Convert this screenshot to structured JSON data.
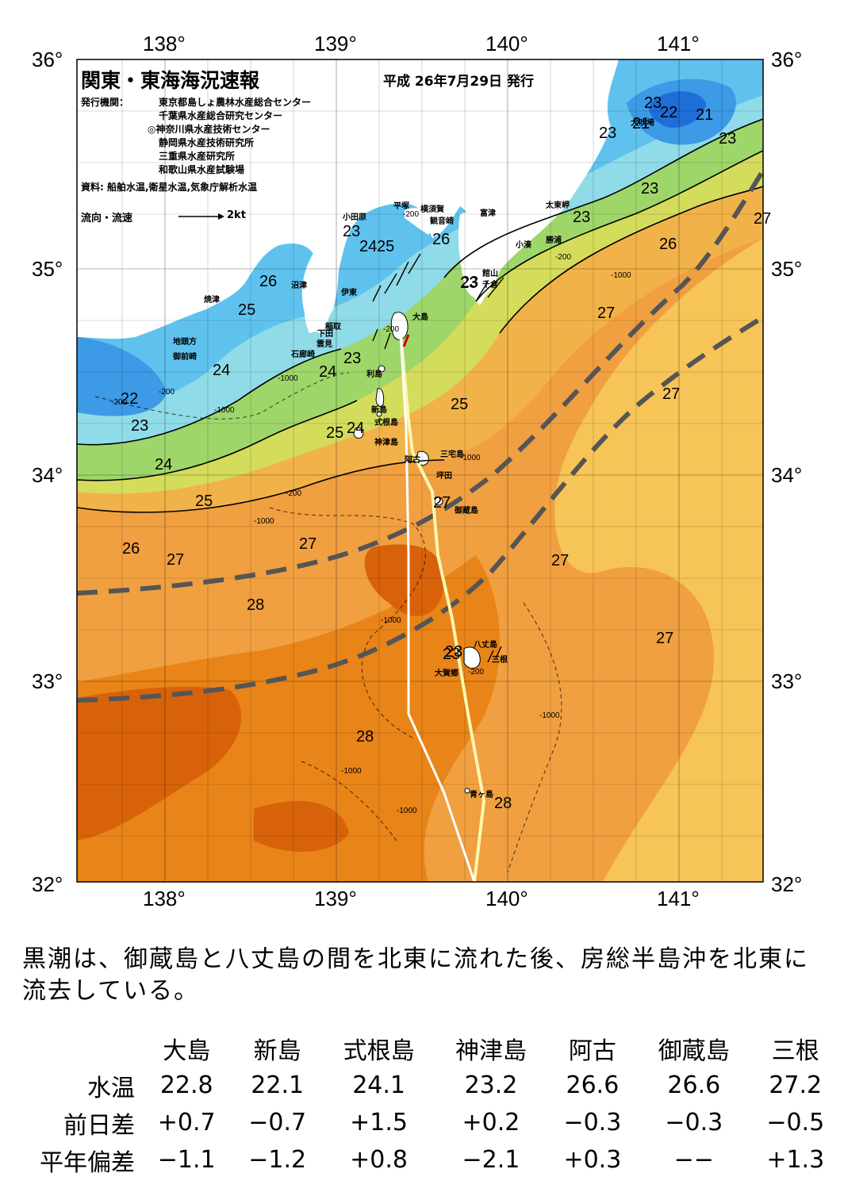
{
  "map": {
    "title": "関東・東海海況速報",
    "date": "平成 26年7月29日 発行",
    "publisher_label": "発行機関：",
    "publishers": [
      "東京都島しょ農林水産総合センター",
      "千葉県水産総合研究センター",
      "◎神奈川県水産技術センター",
      "静岡県水産技術研究所",
      "三重県水産研究所",
      "和歌山県水産試験場"
    ],
    "source": "資料: 船舶水温,衛星水温,気象庁解析水温",
    "legend_label": "流向・流速",
    "legend_scale": "2kt",
    "lon_labels": [
      "138°",
      "139°",
      "140°",
      "141°"
    ],
    "lat_labels": [
      "36°",
      "35°",
      "34°",
      "33°",
      "32°"
    ],
    "colors": {
      "t21": "#1e6ed8",
      "t22": "#3c9ae6",
      "t23": "#5fc2ee",
      "t24": "#8fdbe8",
      "t25": "#7fd07a",
      "t26": "#c9e05c",
      "t27": "#f0a040",
      "t28": "#e88418",
      "t29": "#d8620a",
      "land": "#ffffff",
      "kuroshio": "#555555",
      "track": "#fff6b0"
    },
    "place_labels": [
      {
        "text": "犬吠埼"
      },
      {
        "text": "太東岬"
      },
      {
        "text": "勝浦"
      },
      {
        "text": "小湊"
      },
      {
        "text": "富津"
      },
      {
        "text": "横須賀"
      },
      {
        "text": "観音崎"
      },
      {
        "text": "平塚"
      },
      {
        "text": "小田原"
      },
      {
        "text": "館山"
      },
      {
        "text": "千倉"
      },
      {
        "text": "沼津"
      },
      {
        "text": "焼津"
      },
      {
        "text": "伊東"
      },
      {
        "text": "稲取"
      },
      {
        "text": "下田"
      },
      {
        "text": "雲見"
      },
      {
        "text": "石廊崎"
      },
      {
        "text": "地頭方"
      },
      {
        "text": "御前崎"
      },
      {
        "text": "大島"
      },
      {
        "text": "利島"
      },
      {
        "text": "新島"
      },
      {
        "text": "式根島"
      },
      {
        "text": "神津島"
      },
      {
        "text": "三宅島"
      },
      {
        "text": "坪田"
      },
      {
        "text": "御蔵島"
      },
      {
        "text": "八丈島"
      },
      {
        "text": "大賀郷"
      },
      {
        "text": "青ヶ島"
      },
      {
        "text": "阿古"
      },
      {
        "text": "三根"
      }
    ],
    "temp_labels": [
      {
        "text": "23"
      },
      {
        "text": "22"
      },
      {
        "text": "21"
      },
      {
        "text": "21"
      },
      {
        "text": "23"
      },
      {
        "text": "23"
      },
      {
        "text": "23"
      },
      {
        "text": "23"
      },
      {
        "text": "26"
      },
      {
        "text": "27"
      },
      {
        "text": "27"
      },
      {
        "text": "27"
      },
      {
        "text": "27"
      },
      {
        "text": "27"
      },
      {
        "text": "23"
      },
      {
        "text": "24"
      },
      {
        "text": "25"
      },
      {
        "text": "23"
      },
      {
        "text": "26"
      },
      {
        "text": "25"
      },
      {
        "text": "24"
      },
      {
        "text": "24"
      },
      {
        "text": "23"
      },
      {
        "text": "22"
      },
      {
        "text": "23"
      },
      {
        "text": "24"
      },
      {
        "text": "25"
      },
      {
        "text": "26"
      },
      {
        "text": "27"
      },
      {
        "text": "27"
      },
      {
        "text": "28"
      },
      {
        "text": "25"
      },
      {
        "text": "24"
      },
      {
        "text": "25"
      },
      {
        "text": "23"
      },
      {
        "text": "27"
      },
      {
        "text": "23"
      },
      {
        "text": "28"
      },
      {
        "text": "28"
      },
      {
        "text": "26"
      },
      {
        "text": "23"
      }
    ],
    "depth_labels": [
      "-200",
      "-200",
      "-200",
      "-1000",
      "-1000",
      "-1000",
      "-1000",
      "-200",
      "-1000",
      "-1000",
      "-1000",
      "-1000",
      "-200",
      "-200",
      "-1000",
      "-200"
    ]
  },
  "summary": "黒潮は、御蔵島と八丈島の間を北東に流れた後、房総半島沖を北東に流去している。",
  "stats": {
    "columns": [
      "大島",
      "新島",
      "式根島",
      "神津島",
      "阿古",
      "御蔵島",
      "三根"
    ],
    "rows": [
      {
        "label": "水温",
        "values": [
          "22.8",
          "22.1",
          "24.1",
          "23.2",
          "26.6",
          "26.6",
          "27.2"
        ]
      },
      {
        "label": "前日差",
        "values": [
          "+0.7",
          "−0.7",
          "+1.5",
          "+0.2",
          "−0.3",
          "−0.3",
          "−0.5"
        ]
      },
      {
        "label": "平年偏差",
        "values": [
          "−1.1",
          "−1.2",
          "+0.8",
          "−2.1",
          "+0.3",
          "−−",
          "+1.3"
        ]
      }
    ]
  }
}
